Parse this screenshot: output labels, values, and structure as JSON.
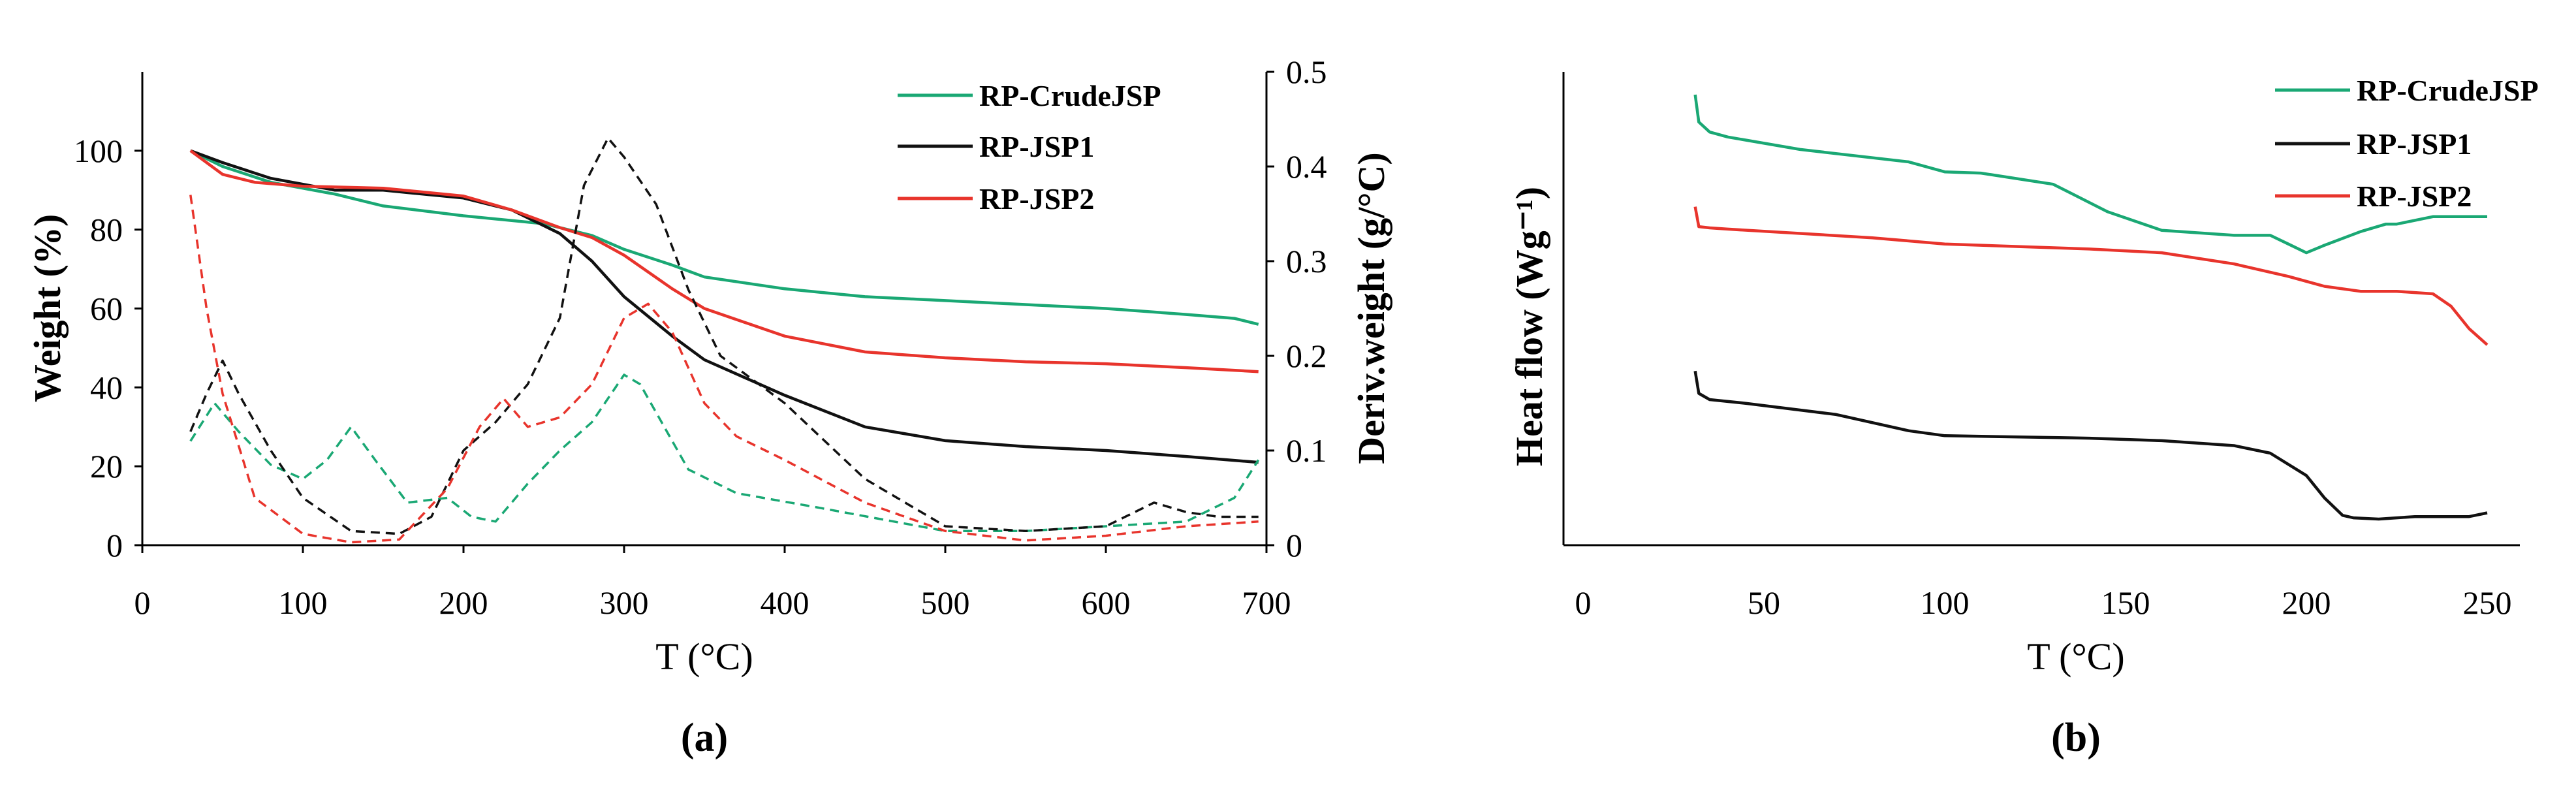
{
  "chart_data": [
    {
      "panel": "(a)",
      "type": "line",
      "xlabel": "T (°C)",
      "ylabel": "Weight (%)",
      "y2label": "Deriv.weight (g/°C)",
      "xlim": [
        0,
        700
      ],
      "ylim": [
        0,
        120
      ],
      "y2lim": [
        0,
        0.5
      ],
      "xticks": [
        "0",
        "100",
        "200",
        "300",
        "400",
        "500",
        "600",
        "700"
      ],
      "yticks": [
        "0",
        "20",
        "40",
        "60",
        "80",
        "100"
      ],
      "y2ticks": [
        "0",
        "0.1",
        "0.2",
        "0.3",
        "0.4",
        "0.5"
      ],
      "legend": [
        "RP-CrudeJSP",
        "RP-JSP1",
        "RP-JSP2"
      ],
      "colors": {
        "RP-CrudeJSP": "#1aa874",
        "RP-JSP1": "#111111",
        "RP-JSP2": "#e8342c"
      },
      "series": [
        {
          "name": "RP-CrudeJSP",
          "kind": "weight",
          "x": [
            30,
            50,
            80,
            120,
            150,
            200,
            250,
            280,
            300,
            330,
            350,
            400,
            450,
            500,
            550,
            600,
            650,
            680,
            695
          ],
          "y": [
            100,
            96,
            92,
            89,
            86,
            83.5,
            81.5,
            78.5,
            75,
            71,
            68,
            65,
            63,
            62,
            61,
            60,
            58.5,
            57.5,
            56
          ]
        },
        {
          "name": "RP-JSP1",
          "kind": "weight",
          "x": [
            30,
            50,
            80,
            120,
            150,
            200,
            230,
            260,
            280,
            300,
            330,
            350,
            400,
            450,
            500,
            550,
            600,
            650,
            695
          ],
          "y": [
            100,
            97,
            93,
            90,
            90,
            88,
            85,
            79,
            72,
            63,
            53,
            47,
            38,
            30,
            26.5,
            25,
            24,
            22.5,
            21
          ]
        },
        {
          "name": "RP-JSP2",
          "kind": "weight",
          "x": [
            30,
            50,
            70,
            100,
            150,
            200,
            230,
            260,
            280,
            300,
            330,
            350,
            400,
            450,
            500,
            550,
            600,
            650,
            695
          ],
          "y": [
            100,
            94,
            92,
            91,
            90.5,
            88.5,
            85,
            80.5,
            78,
            73.5,
            65,
            60,
            53,
            49,
            47.5,
            46.5,
            46,
            45,
            44
          ]
        },
        {
          "name": "RP-CrudeJSP",
          "kind": "derivative",
          "x": [
            30,
            45,
            60,
            80,
            100,
            115,
            130,
            145,
            165,
            190,
            205,
            220,
            240,
            260,
            280,
            300,
            310,
            320,
            340,
            370,
            420,
            500,
            550,
            600,
            650,
            680,
            695
          ],
          "y": [
            0.11,
            0.15,
            0.12,
            0.085,
            0.07,
            0.09,
            0.125,
            0.09,
            0.045,
            0.05,
            0.03,
            0.025,
            0.065,
            0.1,
            0.13,
            0.18,
            0.17,
            0.14,
            0.08,
            0.055,
            0.04,
            0.015,
            0.015,
            0.02,
            0.025,
            0.05,
            0.09
          ]
        },
        {
          "name": "RP-JSP1",
          "kind": "derivative",
          "x": [
            30,
            40,
            50,
            60,
            80,
            100,
            130,
            160,
            180,
            200,
            220,
            240,
            260,
            275,
            290,
            300,
            320,
            340,
            360,
            400,
            450,
            500,
            550,
            600,
            630,
            650,
            670,
            695
          ],
          "y": [
            0.12,
            0.16,
            0.195,
            0.16,
            0.1,
            0.05,
            0.015,
            0.012,
            0.03,
            0.1,
            0.13,
            0.17,
            0.24,
            0.38,
            0.43,
            0.41,
            0.36,
            0.27,
            0.2,
            0.15,
            0.07,
            0.02,
            0.015,
            0.02,
            0.045,
            0.035,
            0.03,
            0.03
          ]
        },
        {
          "name": "RP-JSP2",
          "kind": "derivative",
          "x": [
            30,
            40,
            50,
            70,
            100,
            130,
            160,
            190,
            210,
            225,
            240,
            260,
            280,
            300,
            315,
            330,
            350,
            370,
            400,
            450,
            500,
            550,
            600,
            650,
            695
          ],
          "y": [
            0.37,
            0.25,
            0.16,
            0.05,
            0.012,
            0.003,
            0.006,
            0.06,
            0.125,
            0.155,
            0.125,
            0.135,
            0.17,
            0.24,
            0.255,
            0.225,
            0.15,
            0.115,
            0.09,
            0.045,
            0.015,
            0.005,
            0.01,
            0.02,
            0.025
          ]
        }
      ]
    },
    {
      "panel": "(b)",
      "type": "line",
      "xlabel": "T (°C)",
      "ylabel": "Heat flow (Wg⁻¹)",
      "xlim": [
        0,
        250
      ],
      "xticks": [
        "0",
        "50",
        "100",
        "150",
        "200",
        "250"
      ],
      "legend": [
        "RP-CrudeJSP",
        "RP-JSP1",
        "RP-JSP2"
      ],
      "colors": {
        "RP-CrudeJSP": "#1aa874",
        "RP-JSP1": "#111111",
        "RP-JSP2": "#e8342c"
      },
      "series": [
        {
          "name": "RP-CrudeJSP",
          "x": [
            31,
            32,
            35,
            40,
            60,
            90,
            100,
            110,
            130,
            145,
            160,
            180,
            190,
            195,
            200,
            205,
            215,
            222,
            225,
            235,
            250
          ],
          "y": [
            9.5,
            8.4,
            8.0,
            7.8,
            7.3,
            6.8,
            6.4,
            6.35,
            5.9,
            4.8,
            4.05,
            3.85,
            3.85,
            3.5,
            3.15,
            3.45,
            4.0,
            4.3,
            4.3,
            4.6,
            4.6
          ]
        },
        {
          "name": "RP-JSP1",
          "x": [
            31,
            32,
            35,
            45,
            70,
            90,
            100,
            140,
            160,
            180,
            190,
            200,
            205,
            210,
            213,
            220,
            230,
            245,
            250
          ],
          "y": [
            -1.6,
            -2.5,
            -2.75,
            -2.9,
            -3.35,
            -4.0,
            -4.2,
            -4.3,
            -4.4,
            -4.6,
            -4.9,
            -5.8,
            -6.7,
            -7.4,
            -7.5,
            -7.55,
            -7.45,
            -7.45,
            -7.3
          ]
        },
        {
          "name": "RP-JSP2",
          "x": [
            31,
            32,
            35,
            40,
            80,
            100,
            140,
            160,
            180,
            195,
            205,
            215,
            225,
            235,
            240,
            245,
            250
          ],
          "y": [
            5.0,
            4.2,
            4.15,
            4.1,
            3.75,
            3.5,
            3.3,
            3.15,
            2.7,
            2.2,
            1.8,
            1.6,
            1.6,
            1.5,
            1.0,
            0.1,
            -0.55
          ]
        }
      ]
    }
  ]
}
